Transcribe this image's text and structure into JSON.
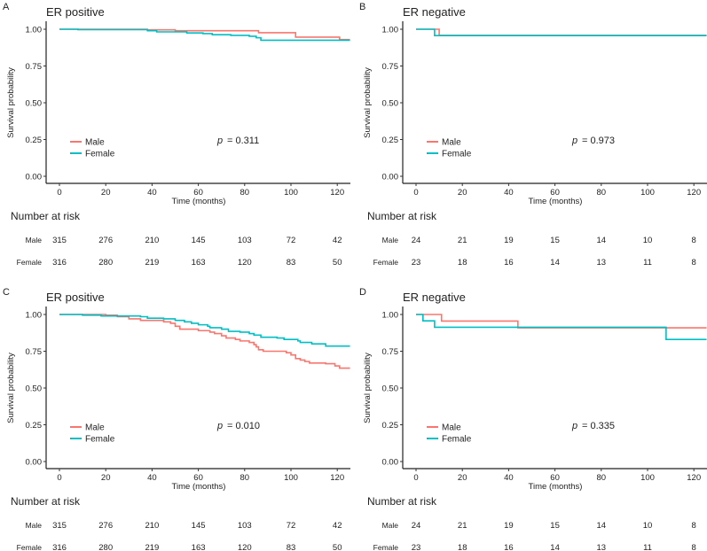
{
  "chart_data": [
    {
      "type": "line",
      "panel_label": "A",
      "title": "ER positive",
      "xlabel": "Time (months)",
      "ylabel": "Survival probability",
      "xlim": [
        -6,
        126
      ],
      "ylim": [
        0,
        1
      ],
      "xticks": [
        "0",
        "20",
        "40",
        "60",
        "80",
        "100",
        "120"
      ],
      "yticks": [
        "0.00",
        "0.25",
        "0.50",
        "0.75",
        "1.00"
      ],
      "p_label": "p",
      "p_value": "= 0.311",
      "series": [
        {
          "name": "Male",
          "color": "#F8766D",
          "x": [
            0,
            38,
            50,
            86,
            102,
            121,
            126
          ],
          "y": [
            1.0,
            0.996,
            0.99,
            0.976,
            0.946,
            0.93,
            0.93
          ]
        },
        {
          "name": "Female",
          "color": "#00BFC4",
          "x": [
            0,
            8,
            38,
            42,
            55,
            62,
            66,
            74,
            82,
            85,
            87,
            126
          ],
          "y": [
            1.0,
            0.997,
            0.99,
            0.982,
            0.975,
            0.97,
            0.963,
            0.958,
            0.952,
            0.942,
            0.925,
            0.925
          ]
        }
      ],
      "risk_table": {
        "title": "Number at risk",
        "times": [
          0,
          20,
          40,
          60,
          80,
          100,
          120
        ],
        "rows": [
          {
            "label": "Male",
            "values": [
              "315",
              "276",
              "210",
              "145",
              "103",
              "72",
              "42"
            ]
          },
          {
            "label": "Female",
            "values": [
              "316",
              "280",
              "219",
              "163",
              "120",
              "83",
              "50"
            ]
          }
        ]
      }
    },
    {
      "type": "line",
      "panel_label": "B",
      "title": "ER negative",
      "xlabel": "Time (months)",
      "ylabel": "Survival probability",
      "xlim": [
        -6,
        126
      ],
      "ylim": [
        0,
        1
      ],
      "xticks": [
        "0",
        "20",
        "40",
        "60",
        "80",
        "100",
        "120"
      ],
      "yticks": [
        "0.00",
        "0.25",
        "0.50",
        "0.75",
        "1.00"
      ],
      "p_label": "p",
      "p_value": "= 0.973",
      "series": [
        {
          "name": "Male",
          "color": "#F8766D",
          "x": [
            0,
            10,
            126
          ],
          "y": [
            1.0,
            0.958,
            0.958
          ]
        },
        {
          "name": "Female",
          "color": "#00BFC4",
          "x": [
            0,
            8,
            126
          ],
          "y": [
            1.0,
            0.957,
            0.957
          ]
        }
      ],
      "risk_table": {
        "title": "Number at risk",
        "times": [
          0,
          20,
          40,
          60,
          80,
          100,
          120
        ],
        "rows": [
          {
            "label": "Male",
            "values": [
              "24",
              "21",
              "19",
              "15",
              "14",
              "10",
              "8"
            ]
          },
          {
            "label": "Female",
            "values": [
              "23",
              "18",
              "16",
              "14",
              "13",
              "11",
              "8"
            ]
          }
        ]
      }
    },
    {
      "type": "line",
      "panel_label": "C",
      "title": "ER positive",
      "xlabel": "Time (months)",
      "ylabel": "Survival probability",
      "xlim": [
        -6,
        126
      ],
      "ylim": [
        0,
        1
      ],
      "xticks": [
        "0",
        "20",
        "40",
        "60",
        "80",
        "100",
        "120"
      ],
      "yticks": [
        "0.00",
        "0.25",
        "0.50",
        "0.75",
        "1.00"
      ],
      "p_label": "p",
      "p_value": "= 0.010",
      "series": [
        {
          "name": "Male",
          "color": "#F8766D",
          "x": [
            0,
            20,
            25,
            30,
            35,
            45,
            48,
            50,
            52,
            60,
            65,
            67,
            70,
            72,
            76,
            78,
            82,
            84,
            85,
            86,
            88,
            98,
            100,
            102,
            104,
            106,
            108,
            115,
            119,
            121,
            126
          ],
          "y": [
            1.0,
            0.995,
            0.985,
            0.97,
            0.96,
            0.95,
            0.94,
            0.92,
            0.9,
            0.89,
            0.88,
            0.87,
            0.855,
            0.84,
            0.83,
            0.82,
            0.81,
            0.795,
            0.78,
            0.76,
            0.75,
            0.74,
            0.725,
            0.7,
            0.69,
            0.68,
            0.67,
            0.665,
            0.65,
            0.635,
            0.635
          ]
        },
        {
          "name": "Female",
          "color": "#00BFC4",
          "x": [
            0,
            10,
            18,
            35,
            38,
            45,
            50,
            54,
            57,
            60,
            64,
            65,
            70,
            73,
            78,
            82,
            84,
            87,
            94,
            97,
            103,
            104,
            109,
            115,
            126
          ],
          "y": [
            1.0,
            0.995,
            0.99,
            0.985,
            0.975,
            0.97,
            0.96,
            0.95,
            0.94,
            0.93,
            0.92,
            0.91,
            0.9,
            0.885,
            0.88,
            0.87,
            0.86,
            0.845,
            0.84,
            0.83,
            0.82,
            0.81,
            0.8,
            0.785,
            0.785
          ]
        }
      ],
      "risk_table": {
        "title": "Number at risk",
        "times": [
          0,
          20,
          40,
          60,
          80,
          100,
          120
        ],
        "rows": [
          {
            "label": "Male",
            "values": [
              "315",
              "276",
              "210",
              "145",
              "103",
              "72",
              "42"
            ]
          },
          {
            "label": "Female",
            "values": [
              "316",
              "280",
              "219",
              "163",
              "120",
              "83",
              "50"
            ]
          }
        ]
      }
    },
    {
      "type": "line",
      "panel_label": "D",
      "title": "ER negative",
      "xlabel": "Time (months)",
      "ylabel": "Survival probability",
      "xlim": [
        -6,
        126
      ],
      "ylim": [
        0,
        1
      ],
      "xticks": [
        "0",
        "20",
        "40",
        "60",
        "80",
        "100",
        "120"
      ],
      "yticks": [
        "0.00",
        "0.25",
        "0.50",
        "0.75",
        "1.00"
      ],
      "p_label": "p",
      "p_value": "= 0.335",
      "series": [
        {
          "name": "Male",
          "color": "#F8766D",
          "x": [
            0,
            11,
            44,
            126
          ],
          "y": [
            1.0,
            0.955,
            0.909,
            0.909
          ]
        },
        {
          "name": "Female",
          "color": "#00BFC4",
          "x": [
            0,
            3,
            8,
            108,
            126
          ],
          "y": [
            1.0,
            0.957,
            0.913,
            0.83,
            0.83
          ]
        }
      ],
      "risk_table": {
        "title": "Number at risk",
        "times": [
          0,
          20,
          40,
          60,
          80,
          100,
          120
        ],
        "rows": [
          {
            "label": "Male",
            "values": [
              "24",
              "21",
              "19",
              "15",
              "14",
              "10",
              "8"
            ]
          },
          {
            "label": "Female",
            "values": [
              "23",
              "18",
              "16",
              "14",
              "13",
              "11",
              "8"
            ]
          }
        ]
      }
    }
  ]
}
